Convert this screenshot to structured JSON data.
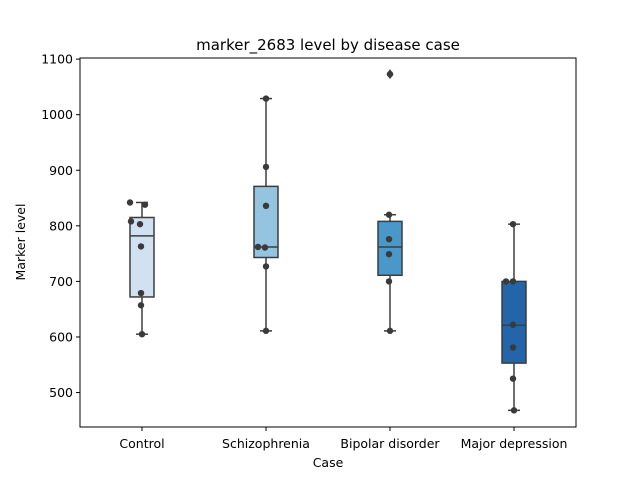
{
  "chart_data": {
    "type": "box",
    "title": "marker_2683 level by disease case",
    "xlabel": "Case",
    "ylabel": "Marker level",
    "ylim": [
      438,
      1102
    ],
    "yticks": [
      "500",
      "600",
      "700",
      "800",
      "900",
      "1000",
      "1100"
    ],
    "grid": false,
    "categories": [
      "Control",
      "Schizophrenia",
      "Bipolar disorder",
      "Major depression"
    ],
    "colors": [
      "#d0e1f2",
      "#94c4df",
      "#4a98c9",
      "#2265a9"
    ],
    "boxes": [
      {
        "category": "Control",
        "min": 605,
        "q1": 672,
        "median": 782,
        "q3": 815,
        "max": 842,
        "outliers": []
      },
      {
        "category": "Schizophrenia",
        "min": 611,
        "q1": 743,
        "median": 762,
        "q3": 871,
        "max": 1029,
        "outliers": []
      },
      {
        "category": "Bipolar disorder",
        "min": 611,
        "q1": 711,
        "median": 762,
        "q3": 808,
        "max": 820,
        "outliers": [
          1073
        ]
      },
      {
        "category": "Major depression",
        "min": 468,
        "q1": 553,
        "median": 621,
        "q3": 700,
        "max": 803,
        "outliers": []
      }
    ],
    "points": [
      [
        842,
        838,
        808,
        803,
        763,
        679,
        657,
        605
      ],
      [
        1029,
        906,
        836,
        762,
        761,
        727,
        611
      ],
      [
        1073,
        820,
        776,
        749,
        700,
        611
      ],
      [
        803,
        700,
        700,
        622,
        581,
        525,
        468
      ]
    ]
  }
}
